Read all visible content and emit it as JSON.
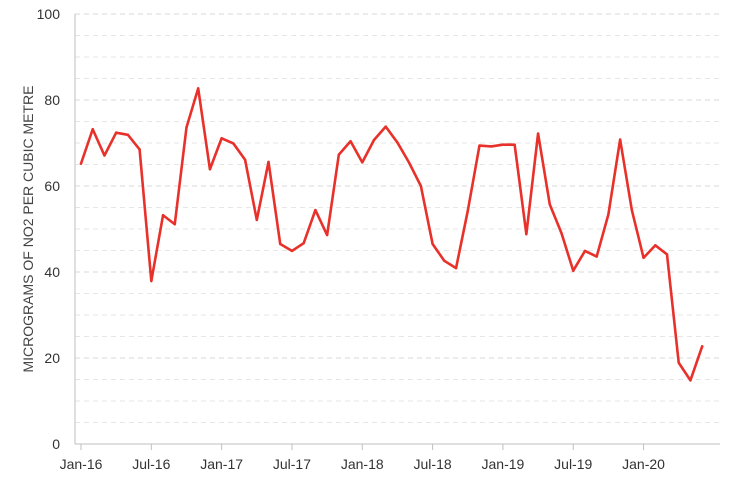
{
  "chart_data": {
    "type": "line",
    "title": "",
    "xlabel": "",
    "ylabel": "MICROGRAMS OF NO2 PER CUBIC METRE",
    "ylim": [
      0,
      100
    ],
    "yticks": [
      0,
      20,
      40,
      60,
      80,
      100
    ],
    "yminor_step": 5,
    "grid": true,
    "legend": "none",
    "xticks": [
      {
        "label": "Jan-16",
        "index": 0
      },
      {
        "label": "Jul-16",
        "index": 6
      },
      {
        "label": "Jan-17",
        "index": 12
      },
      {
        "label": "Jul-17",
        "index": 18
      },
      {
        "label": "Jan-18",
        "index": 24
      },
      {
        "label": "Jul-18",
        "index": 30
      },
      {
        "label": "Jan-19",
        "index": 36
      },
      {
        "label": "Jul-19",
        "index": 42
      },
      {
        "label": "Jan-20",
        "index": 48
      }
    ],
    "series": [
      {
        "color": "#e8312a",
        "values": [
          65.2,
          73.2,
          67.1,
          72.4,
          71.9,
          68.5,
          37.9,
          53.2,
          51.1,
          73.6,
          82.7,
          63.9,
          71.1,
          69.9,
          66.1,
          52.1,
          65.6,
          46.5,
          44.9,
          46.7,
          54.4,
          48.6,
          67.3,
          70.4,
          65.5,
          70.7,
          73.8,
          70.1,
          65.4,
          60.0,
          46.5,
          42.6,
          40.9,
          54.2,
          69.4,
          69.2,
          69.6,
          69.6,
          48.8,
          72.2,
          55.7,
          49.0,
          40.3,
          44.9,
          43.6,
          53.4,
          70.8,
          54.4,
          43.3,
          46.2,
          44.1,
          18.9,
          14.8,
          22.7
        ]
      }
    ]
  }
}
